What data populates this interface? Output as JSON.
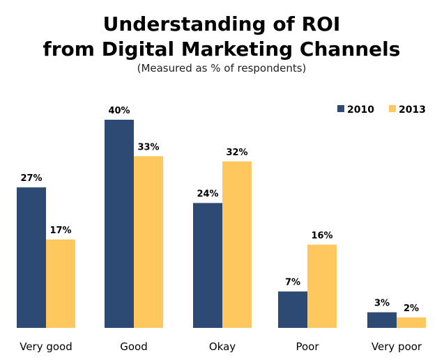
{
  "chart_data": {
    "type": "bar",
    "title_lines": [
      "Understanding of ROI",
      "from Digital Marketing Channels"
    ],
    "subtitle": "(Measured as % of respondents)",
    "categories": [
      "Very good",
      "Good",
      "Okay",
      "Poor",
      "Very poor"
    ],
    "series": [
      {
        "name": "2010",
        "color": "#2C4A74",
        "values": [
          27,
          40,
          24,
          7,
          3
        ],
        "labels": [
          "27%",
          "40%",
          "24%",
          "7%",
          "3%"
        ]
      },
      {
        "name": "2013",
        "color": "#FFC85F",
        "values": [
          17,
          33,
          32,
          16,
          2
        ],
        "labels": [
          "17%",
          "33%",
          "32%",
          "16%",
          "2%"
        ]
      }
    ],
    "ylim": [
      0,
      40
    ],
    "grid": false,
    "legend": "top-right"
  }
}
